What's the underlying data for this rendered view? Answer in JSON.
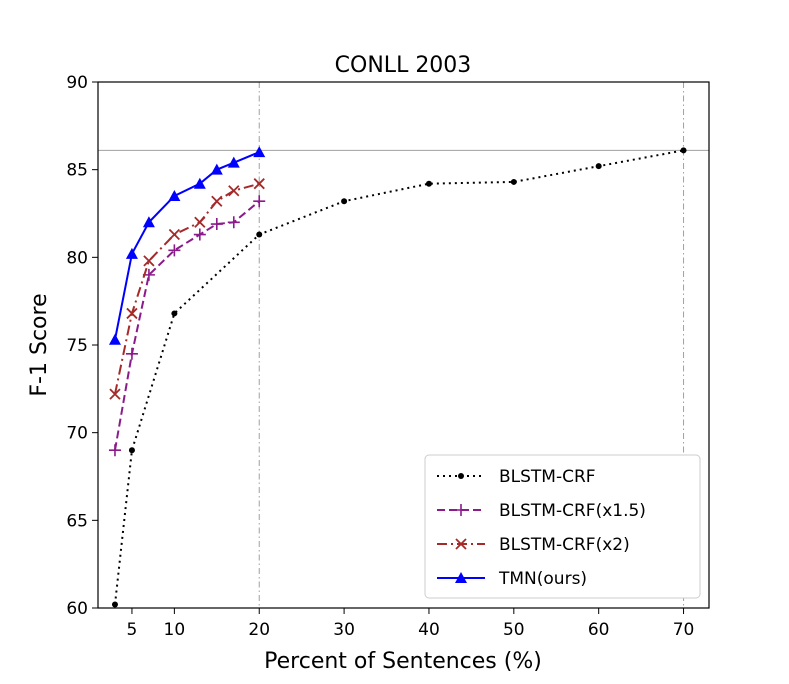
{
  "chart_data": {
    "type": "line",
    "title": "CONLL 2003",
    "xlabel": "Percent of Sentences (%)",
    "ylabel": "F-1 Score",
    "xlim": [
      1,
      73
    ],
    "ylim": [
      60,
      90
    ],
    "xticks": [
      5,
      10,
      20,
      30,
      40,
      50,
      60,
      70
    ],
    "yticks": [
      60,
      65,
      70,
      75,
      80,
      85,
      90
    ],
    "vlines": [
      20,
      70
    ],
    "hline": 86.1,
    "legend_position": "lower-right",
    "series": [
      {
        "name": "BLSTM-CRF",
        "color": "#000000",
        "marker": "dot",
        "linestyle": "dotted",
        "x": [
          3,
          5,
          10,
          20,
          30,
          40,
          50,
          60,
          70
        ],
        "y": [
          60.2,
          69.0,
          76.8,
          81.3,
          83.2,
          84.2,
          84.3,
          85.2,
          86.1
        ]
      },
      {
        "name": "BLSTM-CRF(x1.5)",
        "color": "#8b1a8b",
        "marker": "plus",
        "linestyle": "dashed",
        "x": [
          3,
          5,
          7,
          10,
          13,
          15,
          17,
          20
        ],
        "y": [
          69.0,
          74.5,
          79.0,
          80.4,
          81.3,
          81.9,
          82.0,
          83.2
        ]
      },
      {
        "name": "BLSTM-CRF(x2)",
        "color": "#a52a2a",
        "marker": "x",
        "linestyle": "dashdot",
        "x": [
          3,
          5,
          7,
          10,
          13,
          15,
          17,
          20
        ],
        "y": [
          72.2,
          76.8,
          79.8,
          81.3,
          82.0,
          83.2,
          83.8,
          84.2
        ]
      },
      {
        "name": "TMN(ours)",
        "color": "#0000ff",
        "marker": "triangle",
        "linestyle": "solid",
        "x": [
          3,
          5,
          7,
          10,
          13,
          15,
          17,
          20
        ],
        "y": [
          75.3,
          80.2,
          82.0,
          83.5,
          84.2,
          85.0,
          85.4,
          86.0
        ]
      }
    ]
  }
}
